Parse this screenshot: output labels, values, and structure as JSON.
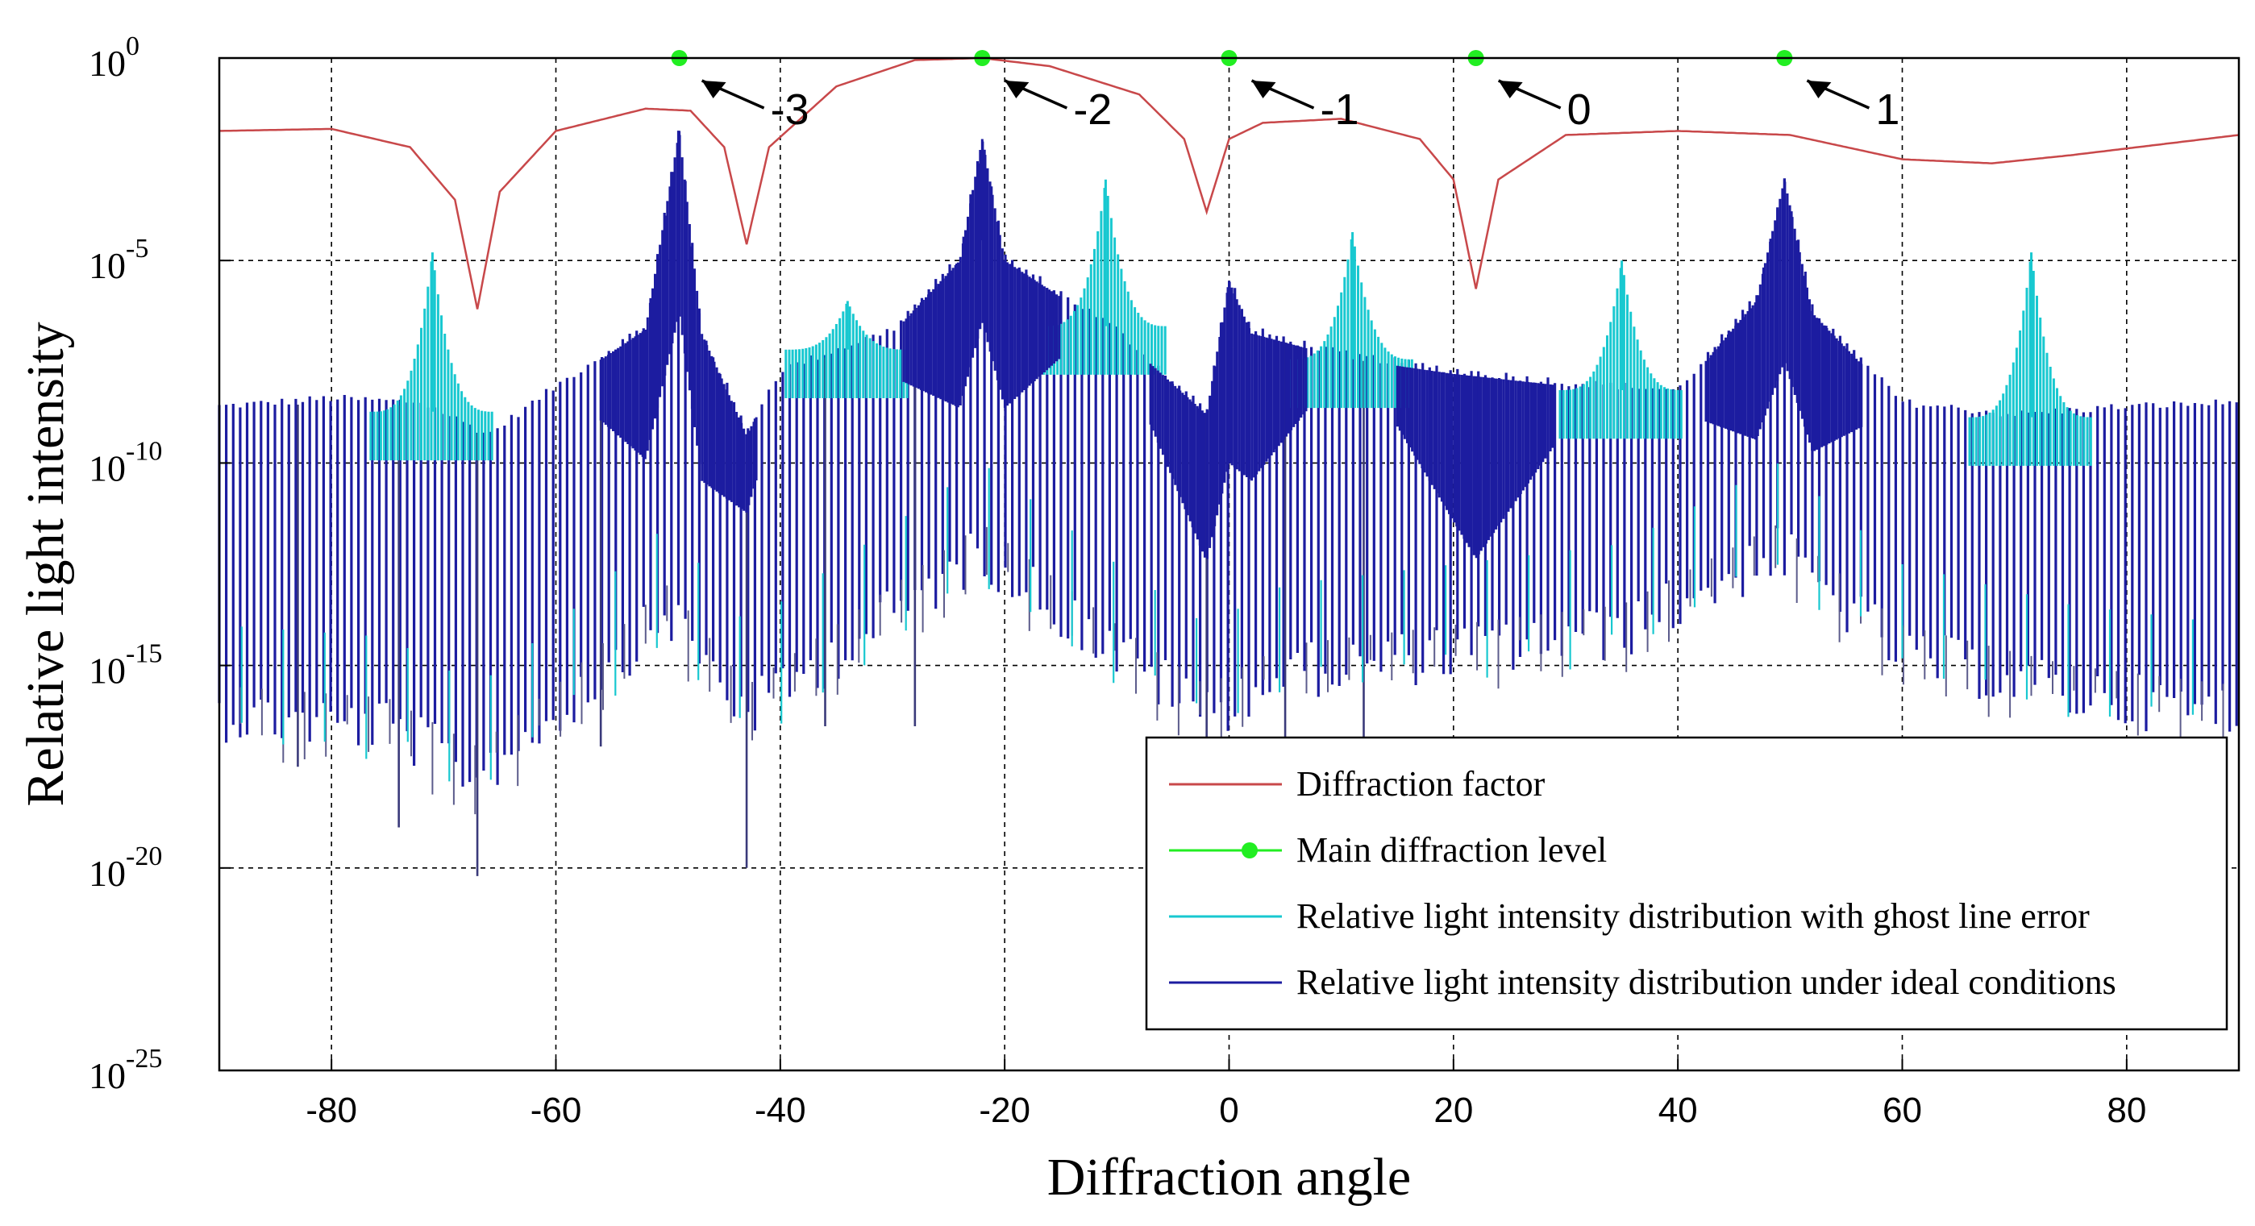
{
  "chart_data": {
    "type": "line",
    "title": "",
    "xlabel": "Diffraction angle",
    "ylabel": "Relative light intensity",
    "xlim": [
      -90,
      90
    ],
    "ylim_exponent": [
      -25,
      0
    ],
    "y_scale": "log",
    "grid": true,
    "x_ticks": [
      "-80",
      "-60",
      "-40",
      "-20",
      "0",
      "20",
      "40",
      "60",
      "80"
    ],
    "y_tick_base": "10",
    "y_ticks": [
      {
        "base": "10",
        "exp": "0",
        "value": 0
      },
      {
        "base": "10",
        "exp": "-5",
        "value": -5
      },
      {
        "base": "10",
        "exp": "-10",
        "value": -10
      },
      {
        "base": "10",
        "exp": "-15",
        "value": -15
      },
      {
        "base": "10",
        "exp": "-20",
        "value": -20
      },
      {
        "base": "10",
        "exp": "-25",
        "value": -25
      }
    ],
    "colors": {
      "diffraction_factor": "#c8484a",
      "main_level": "#22ee22",
      "ghost": "#18c8d0",
      "ideal": "#1c1ca0"
    },
    "series": [
      {
        "name": "Diffraction factor",
        "key": "diffraction_factor",
        "description_points_log10": [
          [
            -90,
            -1.8
          ],
          [
            -80,
            -1.75
          ],
          [
            -73,
            -2.2
          ],
          [
            -69,
            -3.5
          ],
          [
            -67,
            -6.2
          ],
          [
            -65,
            -3.3
          ],
          [
            -60,
            -1.8
          ],
          [
            -52,
            -1.25
          ],
          [
            -48,
            -1.3
          ],
          [
            -45,
            -2.2
          ],
          [
            -43,
            -4.6
          ],
          [
            -41,
            -2.2
          ],
          [
            -35,
            -0.7
          ],
          [
            -28,
            -0.05
          ],
          [
            -22,
            0
          ],
          [
            -16,
            -0.2
          ],
          [
            -8,
            -0.9
          ],
          [
            -4,
            -2.0
          ],
          [
            -2,
            -3.8
          ],
          [
            0,
            -2.0
          ],
          [
            3,
            -1.6
          ],
          [
            10,
            -1.5
          ],
          [
            17,
            -2.0
          ],
          [
            20,
            -3.0
          ],
          [
            22,
            -5.7
          ],
          [
            24,
            -3.0
          ],
          [
            30,
            -1.9
          ],
          [
            40,
            -1.8
          ],
          [
            50,
            -1.9
          ],
          [
            60,
            -2.5
          ],
          [
            68,
            -2.6
          ],
          [
            75,
            -2.4
          ],
          [
            90,
            -1.9
          ]
        ]
      },
      {
        "name": "Main diffraction level",
        "key": "main_level",
        "points": [
          {
            "angle": -49,
            "log10": 0,
            "order": "-3"
          },
          {
            "angle": -22,
            "log10": 0,
            "order": "-2"
          },
          {
            "angle": 0,
            "log10": 0,
            "order": "-1"
          },
          {
            "angle": 22,
            "log10": 0,
            "order": "0"
          },
          {
            "angle": 49.5,
            "log10": 0,
            "order": "1"
          }
        ]
      },
      {
        "name": "Relative light intensity distribution with ghost line error",
        "key": "ghost",
        "ghost_peaks": [
          {
            "angle": -71,
            "log10": -4.8
          },
          {
            "angle": -34,
            "log10": -6.0
          },
          {
            "angle": -11,
            "log10": -3.0
          },
          {
            "angle": 11,
            "log10": -4.3
          },
          {
            "angle": 35,
            "log10": -5.0
          },
          {
            "angle": 71.5,
            "log10": -4.8
          }
        ]
      },
      {
        "name": "Relative light intensity distribution under ideal conditions",
        "key": "ideal",
        "envelope_top_log10": [
          [
            -90,
            -8.7
          ],
          [
            -80,
            -8.5
          ],
          [
            -72,
            -8.6
          ],
          [
            -66,
            -9.4
          ],
          [
            -60,
            -8.2
          ],
          [
            -52,
            -6.7
          ],
          [
            -49,
            -1.8
          ],
          [
            -47,
            -6.8
          ],
          [
            -43,
            -9.3
          ],
          [
            -40,
            -7.8
          ],
          [
            -30,
            -6.8
          ],
          [
            -24,
            -5.0
          ],
          [
            -22,
            -2.0
          ],
          [
            -20,
            -5.0
          ],
          [
            -10,
            -6.8
          ],
          [
            -2,
            -8.8
          ],
          [
            0,
            -5.5
          ],
          [
            2,
            -6.8
          ],
          [
            10,
            -7.4
          ],
          [
            20,
            -7.8
          ],
          [
            30,
            -8.1
          ],
          [
            40,
            -8.3
          ],
          [
            47,
            -6.0
          ],
          [
            49.5,
            -3.0
          ],
          [
            52,
            -6.3
          ],
          [
            60,
            -8.6
          ],
          [
            70,
            -8.9
          ],
          [
            80,
            -8.7
          ],
          [
            90,
            -8.6
          ]
        ],
        "envelope_bottom_log10": [
          [
            -90,
            -15.5
          ],
          [
            -75,
            -15.8
          ],
          [
            -67,
            -17.0
          ],
          [
            -60,
            -15.5
          ],
          [
            -50,
            -13.0
          ],
          [
            -43,
            -15.5
          ],
          [
            -35,
            -14.0
          ],
          [
            -22,
            -11.5
          ],
          [
            -10,
            -14.0
          ],
          [
            -2,
            -15.5
          ],
          [
            5,
            -14.5
          ],
          [
            20,
            -14.0
          ],
          [
            35,
            -13.5
          ],
          [
            49,
            -11.5
          ],
          [
            60,
            -14.0
          ],
          [
            75,
            -15.0
          ],
          [
            90,
            -15.5
          ]
        ],
        "spikes": [
          {
            "angle": -67,
            "log10": -20.2
          },
          {
            "angle": -43,
            "log10": -20.0
          },
          {
            "angle": -74,
            "log10": -19.0
          },
          {
            "angle": -83,
            "log10": -17.5
          },
          {
            "angle": -56,
            "log10": -17.0
          },
          {
            "angle": -36,
            "log10": -16.5
          },
          {
            "angle": -28,
            "log10": -16.5
          },
          {
            "angle": -2,
            "log10": -17.0
          },
          {
            "angle": 5,
            "log10": -17.3
          },
          {
            "angle": 12,
            "log10": -16.8
          }
        ]
      }
    ],
    "annotations": [
      "-3",
      "-2",
      "-1",
      "0",
      "1"
    ],
    "legend": {
      "position": "lower-right",
      "entries": [
        {
          "label": "Diffraction factor",
          "key": "diffraction_factor"
        },
        {
          "label": "Main diffraction level",
          "key": "main_level"
        },
        {
          "label": "Relative light intensity distribution with ghost line error",
          "key": "ghost"
        },
        {
          "label": "Relative light intensity distribution under ideal conditions",
          "key": "ideal"
        }
      ]
    }
  }
}
